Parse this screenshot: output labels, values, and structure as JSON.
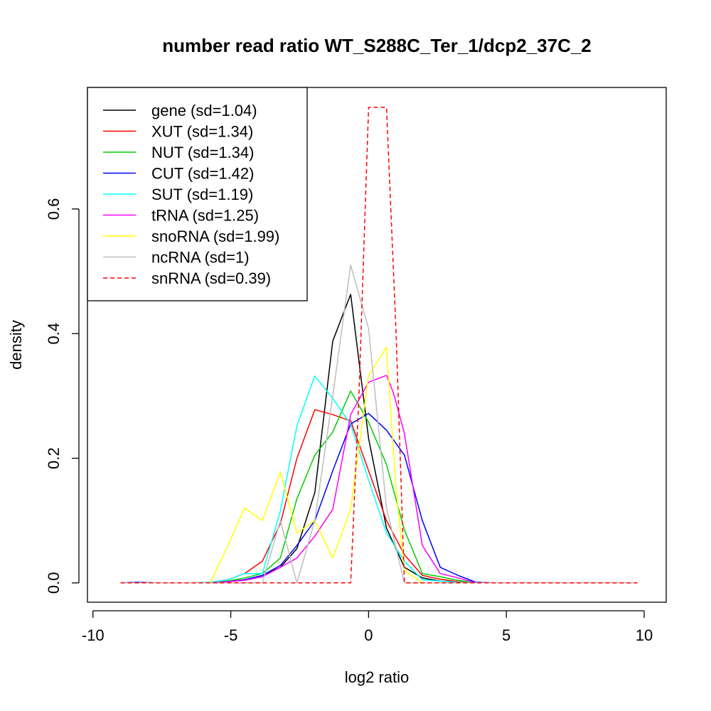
{
  "chart_data": {
    "type": "line",
    "title": "number read ratio WT_S288C_Ter_1/dcp2_37C_2",
    "xlabel": "log2 ratio",
    "ylabel": "density",
    "xlim": [
      -10.2,
      10.8
    ],
    "ylim": [
      -0.031,
      0.795
    ],
    "xticks": [
      -10,
      -5,
      0,
      5,
      10
    ],
    "yticks": [
      0.0,
      0.2,
      0.4,
      0.6
    ],
    "xtick_labels": [
      "-10",
      "-5",
      "0",
      "5",
      "10"
    ],
    "ytick_labels": [
      "0.0",
      "0.2",
      "0.4",
      "0.6"
    ],
    "legend_position": "top-left",
    "grid": false,
    "series": [
      {
        "name": "gene (sd=1.04)",
        "color": "#000000",
        "dash": false,
        "x": [
          -9.0,
          -8.35,
          -7.7,
          -7.05,
          -6.4,
          -5.75,
          -5.1,
          -4.5,
          -3.85,
          -3.2,
          -2.6,
          -1.95,
          -1.3,
          -0.65,
          0.0,
          0.65,
          1.3,
          1.95,
          2.6,
          3.25,
          3.9,
          4.55,
          5.2,
          5.85,
          6.5,
          7.15,
          7.8,
          8.45,
          9.1,
          9.75
        ],
        "y": [
          0.0,
          0.0,
          0.0,
          0.0,
          0.0,
          0.0,
          0.002,
          0.005,
          0.012,
          0.025,
          0.055,
          0.145,
          0.388,
          0.463,
          0.232,
          0.088,
          0.025,
          0.008,
          0.003,
          0.001,
          0.0,
          0.0,
          0.0,
          0.0,
          0.0,
          0.0,
          0.0,
          0.0,
          0.0,
          0.0
        ]
      },
      {
        "name": "XUT (sd=1.34)",
        "color": "#ff0000",
        "dash": false,
        "x": [
          -9.0,
          -8.35,
          -7.7,
          -7.05,
          -6.4,
          -5.75,
          -5.1,
          -4.5,
          -3.85,
          -3.2,
          -2.6,
          -1.95,
          -1.3,
          -0.65,
          0.0,
          0.65,
          1.3,
          1.95,
          2.6,
          3.25,
          3.9,
          4.55,
          5.2,
          5.85,
          6.5,
          7.15,
          7.8,
          8.45,
          9.1,
          9.75
        ],
        "y": [
          0.0,
          0.0,
          0.0,
          0.0,
          0.0,
          0.001,
          0.005,
          0.015,
          0.035,
          0.095,
          0.2,
          0.278,
          0.27,
          0.26,
          0.18,
          0.1,
          0.045,
          0.012,
          0.006,
          0.002,
          0.0,
          0.0,
          0.0,
          0.0,
          0.0,
          0.0,
          0.0,
          0.0,
          0.0,
          0.0
        ]
      },
      {
        "name": "NUT (sd=1.34)",
        "color": "#00cd00",
        "dash": false,
        "x": [
          -9.0,
          -8.35,
          -7.7,
          -7.05,
          -6.4,
          -5.75,
          -5.1,
          -4.5,
          -3.85,
          -3.2,
          -2.6,
          -1.95,
          -1.3,
          -0.65,
          0.0,
          0.65,
          1.3,
          1.95,
          2.6,
          3.25,
          3.9,
          4.55,
          5.2,
          5.85,
          6.5,
          7.15,
          7.8,
          8.45,
          9.1,
          9.75
        ],
        "y": [
          0.0,
          0.0,
          0.0,
          0.0,
          0.0,
          0.0,
          0.003,
          0.008,
          0.015,
          0.04,
          0.135,
          0.205,
          0.242,
          0.308,
          0.258,
          0.19,
          0.085,
          0.015,
          0.01,
          0.004,
          0.0,
          0.0,
          0.0,
          0.0,
          0.0,
          0.0,
          0.0,
          0.0,
          0.0,
          0.0
        ]
      },
      {
        "name": "CUT (sd=1.42)",
        "color": "#0000ff",
        "dash": false,
        "x": [
          -9.0,
          -8.35,
          -7.7,
          -7.05,
          -6.4,
          -5.75,
          -5.1,
          -4.5,
          -3.85,
          -3.2,
          -2.6,
          -1.95,
          -1.3,
          -0.65,
          0.0,
          0.65,
          1.3,
          1.95,
          2.6,
          3.25,
          3.9,
          4.55,
          5.2,
          5.85,
          6.5,
          7.15,
          7.8,
          8.45,
          9.1,
          9.75
        ],
        "y": [
          0.0,
          0.001,
          0.0,
          0.0,
          0.0,
          0.0,
          0.002,
          0.005,
          0.012,
          0.028,
          0.06,
          0.1,
          0.18,
          0.255,
          0.272,
          0.245,
          0.205,
          0.1,
          0.025,
          0.012,
          0.001,
          0.0,
          0.0,
          0.0,
          0.0,
          0.0,
          0.0,
          0.0,
          0.0,
          0.0
        ]
      },
      {
        "name": "SUT (sd=1.19)",
        "color": "#00ffff",
        "dash": false,
        "x": [
          -9.0,
          -8.35,
          -7.7,
          -7.05,
          -6.4,
          -5.75,
          -5.1,
          -4.5,
          -3.85,
          -3.2,
          -2.6,
          -1.95,
          -1.3,
          -0.65,
          0.0,
          0.65,
          1.3,
          1.95,
          2.6,
          3.25,
          3.9,
          4.55,
          5.2,
          5.85,
          6.5,
          7.15,
          7.8,
          8.45,
          9.1,
          9.75
        ],
        "y": [
          0.0,
          0.0,
          0.0,
          0.0,
          0.0,
          0.001,
          0.005,
          0.015,
          0.015,
          0.115,
          0.252,
          0.332,
          0.296,
          0.255,
          0.165,
          0.08,
          0.035,
          0.005,
          0.003,
          0.001,
          0.0,
          0.0,
          0.0,
          0.0,
          0.0,
          0.0,
          0.0,
          0.0,
          0.0,
          0.0
        ]
      },
      {
        "name": "tRNA (sd=1.25)",
        "color": "#ff00ff",
        "dash": false,
        "x": [
          -9.0,
          -8.35,
          -7.7,
          -7.05,
          -6.4,
          -5.75,
          -5.1,
          -4.5,
          -3.85,
          -3.2,
          -2.6,
          -1.95,
          -1.3,
          -0.65,
          0.0,
          0.65,
          0.9,
          1.3,
          1.95,
          2.6,
          3.25,
          3.9,
          4.55,
          5.2,
          5.85,
          6.5,
          7.15,
          7.8,
          8.45,
          9.1,
          9.75
        ],
        "y": [
          0.0,
          0.0,
          0.0,
          0.0,
          0.0,
          0.0,
          0.002,
          0.004,
          0.01,
          0.025,
          0.04,
          0.075,
          0.118,
          0.27,
          0.322,
          0.333,
          0.305,
          0.24,
          0.06,
          0.015,
          0.008,
          0.0,
          0.0,
          0.0,
          0.0,
          0.0,
          0.0,
          0.0,
          0.0,
          0.0,
          0.0
        ]
      },
      {
        "name": "snoRNA (sd=1.99)",
        "color": "#ffff00",
        "dash": false,
        "x": [
          -9.0,
          -8.35,
          -7.7,
          -7.05,
          -6.4,
          -5.75,
          -5.1,
          -4.5,
          -3.85,
          -3.2,
          -2.6,
          -1.95,
          -1.3,
          -0.65,
          0.0,
          0.65,
          1.0,
          1.3,
          1.95,
          2.6,
          3.25,
          3.9,
          4.55,
          5.2,
          5.85,
          6.5,
          7.15,
          7.8,
          8.45,
          9.1,
          9.75
        ],
        "y": [
          0.0,
          0.0,
          0.0,
          0.0,
          0.0,
          0.0,
          0.06,
          0.12,
          0.1,
          0.178,
          0.08,
          0.1,
          0.04,
          0.118,
          0.333,
          0.378,
          0.15,
          0.02,
          0.0,
          0.0,
          0.0,
          0.0,
          0.0,
          0.0,
          0.0,
          0.0,
          0.0,
          0.0,
          0.0,
          0.0,
          0.0
        ]
      },
      {
        "name": "ncRNA (sd=1)",
        "color": "#bebebe",
        "dash": false,
        "x": [
          -9.0,
          -8.35,
          -7.7,
          -7.05,
          -6.4,
          -5.75,
          -5.1,
          -4.5,
          -3.85,
          -3.2,
          -2.6,
          -1.95,
          -1.3,
          -0.65,
          0.0,
          0.65,
          1.3,
          1.95,
          2.6,
          3.25,
          3.9,
          4.55,
          5.2,
          5.85,
          6.5,
          7.15,
          7.8,
          8.45,
          9.1,
          9.75
        ],
        "y": [
          0.0,
          0.0,
          0.0,
          0.0,
          0.0,
          0.0,
          0.0,
          0.0,
          0.0,
          0.1,
          0.0,
          0.1,
          0.3,
          0.51,
          0.408,
          0.12,
          0.0,
          0.0,
          0.0,
          0.0,
          0.0,
          0.0,
          0.0,
          0.0,
          0.0,
          0.0,
          0.0,
          0.0,
          0.0,
          0.0
        ]
      },
      {
        "name": "snRNA (sd=0.39)",
        "color": "#ff0000",
        "dash": true,
        "x": [
          -9.0,
          -0.65,
          -0.35,
          0.0,
          0.65,
          1.0,
          1.3,
          9.75
        ],
        "y": [
          0.0,
          0.0,
          0.3,
          0.763,
          0.763,
          0.4,
          0.0,
          0.0
        ]
      }
    ]
  }
}
